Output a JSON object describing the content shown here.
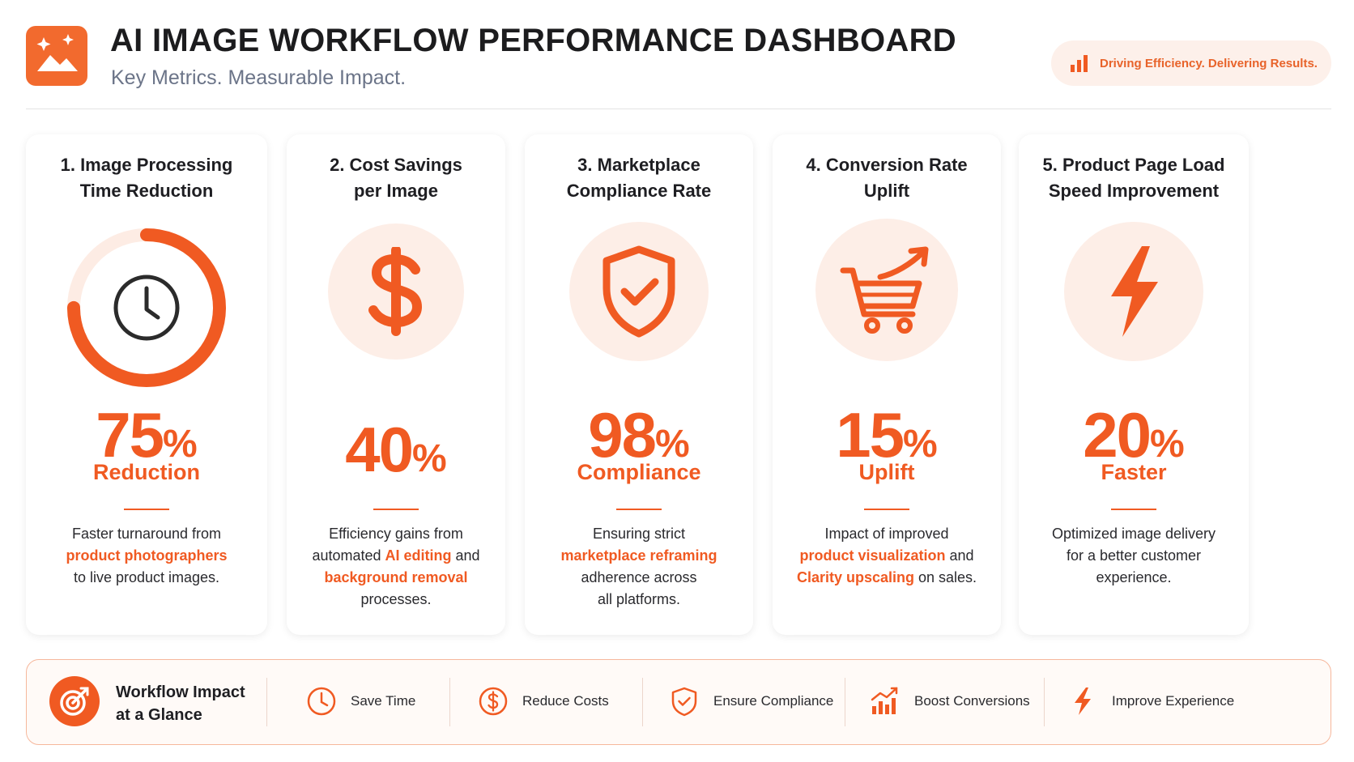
{
  "header": {
    "title": "AI IMAGE WORKFLOW PERFORMANCE DASHBOARD",
    "subtitle": "Key Metrics. Measurable Impact.",
    "tagline": "Driving Efficiency. Delivering Results."
  },
  "colors": {
    "accent": "#f05a22",
    "accent_light": "#fdeee7",
    "text": "#1e1e22"
  },
  "cards": [
    {
      "title_line1": "1. Image Processing",
      "title_line2": "Time Reduction",
      "icon": "clock-icon",
      "value": "75",
      "unit": "%",
      "ring_fraction": 0.75,
      "label": "Reduction",
      "desc": [
        {
          "t": "Faster turnaround from",
          "h": false
        },
        {
          "t": "product photographers",
          "h": true
        },
        {
          "t": "to live product images.",
          "h": false
        }
      ]
    },
    {
      "title_line1": "2. Cost Savings",
      "title_line2": "per Image",
      "icon": "dollar-icon",
      "value": "40",
      "unit": "%",
      "label": "",
      "desc_line1": "Efficiency gains from",
      "desc_line2_a": "automated ",
      "desc_line2_b": "AI editing",
      "desc_line2_c": " and",
      "desc_line3": "background removal",
      "desc_line4": "processes."
    },
    {
      "title_line1": "3. Marketplace",
      "title_line2": "Compliance Rate",
      "icon": "shield-check-icon",
      "value": "98",
      "unit": "%",
      "label": "Compliance",
      "desc_line1": "Ensuring strict",
      "desc_line2": "marketplace reframing",
      "desc_line3": "adherence across",
      "desc_line4": "all platforms."
    },
    {
      "title_line1": "4. Conversion Rate",
      "title_line2": "Uplift",
      "icon": "cart-growth-icon",
      "value": "15",
      "unit": "%",
      "label": "Uplift",
      "desc_line1": "Impact of improved",
      "desc_line2_a": "product visualization",
      "desc_line2_b": " and",
      "desc_line3_a": "Clarity upscaling",
      "desc_line3_b": " on sales."
    },
    {
      "title_line1": "5. Product Page Load",
      "title_line2": "Speed Improvement",
      "icon": "lightning-icon",
      "value": "20",
      "unit": "%",
      "label": "Faster",
      "desc_line1": "Optimized image delivery",
      "desc_line2": "for a better customer",
      "desc_line3": "experience."
    }
  ],
  "summary": {
    "title_line1": "Workflow Impact",
    "title_line2": "at a Glance",
    "items": [
      {
        "icon": "clock-icon",
        "label": "Save Time"
      },
      {
        "icon": "dollar-icon",
        "label": "Reduce Costs"
      },
      {
        "icon": "shield-check-icon",
        "label": "Ensure Compliance"
      },
      {
        "icon": "bar-chart-growth-icon",
        "label": "Boost Conversions"
      },
      {
        "icon": "lightning-icon",
        "label": "Improve Experience"
      }
    ]
  }
}
